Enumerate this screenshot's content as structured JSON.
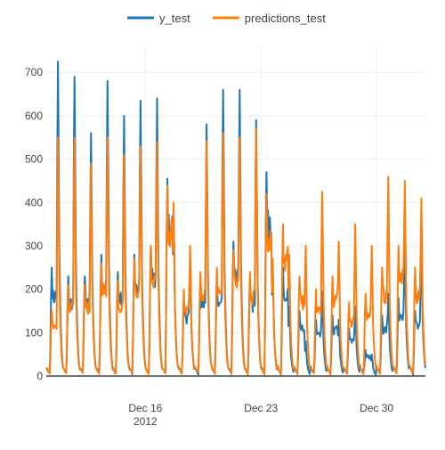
{
  "chart_data": {
    "type": "line",
    "title": "",
    "xlabel": "",
    "ylabel": "",
    "x_range": [
      "2012-12-10T00:00",
      "2013-01-01T23:00"
    ],
    "ylim": [
      0,
      760
    ],
    "x_ticks": [
      {
        "date": "2012-12-16",
        "label": "Dec 16",
        "sublabel": "2012"
      },
      {
        "date": "2012-12-23",
        "label": "Dec 23",
        "sublabel": ""
      },
      {
        "date": "2012-12-30",
        "label": "Dec 30",
        "sublabel": ""
      }
    ],
    "y_ticks": [
      0,
      100,
      200,
      300,
      400,
      500,
      600,
      700
    ],
    "grid": true,
    "legend_position": "top-center",
    "resolution": "hourly",
    "series": [
      {
        "name": "y_test",
        "color": "#1f77b4",
        "daily": [
          {
            "date": "2012-12-10",
            "am": 250,
            "pm": 725
          },
          {
            "date": "2012-12-11",
            "am": 230,
            "pm": 690
          },
          {
            "date": "2012-12-12",
            "am": 230,
            "pm": 560
          },
          {
            "date": "2012-12-13",
            "am": 280,
            "pm": 680
          },
          {
            "date": "2012-12-14",
            "am": 240,
            "pm": 600
          },
          {
            "date": "2012-12-15",
            "am": 280,
            "pm": 635
          },
          {
            "date": "2012-12-16",
            "am": 300,
            "pm": 640
          },
          {
            "date": "2012-12-17",
            "am": 455,
            "pm": 390
          },
          {
            "date": "2012-12-18",
            "am": 180,
            "pm": 270
          },
          {
            "date": "2012-12-19",
            "am": 220,
            "pm": 580
          },
          {
            "date": "2012-12-20",
            "am": 230,
            "pm": 660
          },
          {
            "date": "2012-12-21",
            "am": 310,
            "pm": 660
          },
          {
            "date": "2012-12-22",
            "am": 220,
            "pm": 590
          },
          {
            "date": "2012-12-23",
            "am": 470,
            "pm": 260
          },
          {
            "date": "2012-12-24",
            "am": 250,
            "pm": 160
          },
          {
            "date": "2012-12-25",
            "am": 150,
            "pm": 80
          },
          {
            "date": "2012-12-26",
            "am": 130,
            "pm": 195
          },
          {
            "date": "2012-12-27",
            "am": 140,
            "pm": 130
          },
          {
            "date": "2012-12-28",
            "am": 110,
            "pm": 160
          },
          {
            "date": "2012-12-29",
            "am": 60,
            "pm": 50
          },
          {
            "date": "2012-12-30",
            "am": 140,
            "pm": 190
          },
          {
            "date": "2012-12-31",
            "am": 180,
            "pm": 290
          },
          {
            "date": "2013-01-01",
            "am": 150,
            "pm": 310
          }
        ]
      },
      {
        "name": "predictions_test",
        "color": "#ff7f0e",
        "daily": [
          {
            "date": "2012-12-10",
            "am": 150,
            "pm": 550
          },
          {
            "date": "2012-12-11",
            "am": 210,
            "pm": 550
          },
          {
            "date": "2012-12-12",
            "am": 210,
            "pm": 490
          },
          {
            "date": "2012-12-13",
            "am": 260,
            "pm": 550
          },
          {
            "date": "2012-12-14",
            "am": 220,
            "pm": 510
          },
          {
            "date": "2012-12-15",
            "am": 270,
            "pm": 530
          },
          {
            "date": "2012-12-16",
            "am": 300,
            "pm": 540
          },
          {
            "date": "2012-12-17",
            "am": 440,
            "pm": 400
          },
          {
            "date": "2012-12-18",
            "am": 200,
            "pm": 300
          },
          {
            "date": "2012-12-19",
            "am": 240,
            "pm": 540
          },
          {
            "date": "2012-12-20",
            "am": 250,
            "pm": 560
          },
          {
            "date": "2012-12-21",
            "am": 290,
            "pm": 550
          },
          {
            "date": "2012-12-22",
            "am": 240,
            "pm": 570
          },
          {
            "date": "2012-12-23",
            "am": 420,
            "pm": 270
          },
          {
            "date": "2012-12-24",
            "am": 350,
            "pm": 280
          },
          {
            "date": "2012-12-25",
            "am": 230,
            "pm": 300
          },
          {
            "date": "2012-12-26",
            "am": 200,
            "pm": 425
          },
          {
            "date": "2012-12-27",
            "am": 230,
            "pm": 310
          },
          {
            "date": "2012-12-28",
            "am": 170,
            "pm": 350
          },
          {
            "date": "2012-12-29",
            "am": 190,
            "pm": 300
          },
          {
            "date": "2012-12-30",
            "am": 250,
            "pm": 460
          },
          {
            "date": "2012-12-31",
            "am": 300,
            "pm": 450
          },
          {
            "date": "2013-01-01",
            "am": 250,
            "pm": 410
          }
        ]
      }
    ]
  }
}
